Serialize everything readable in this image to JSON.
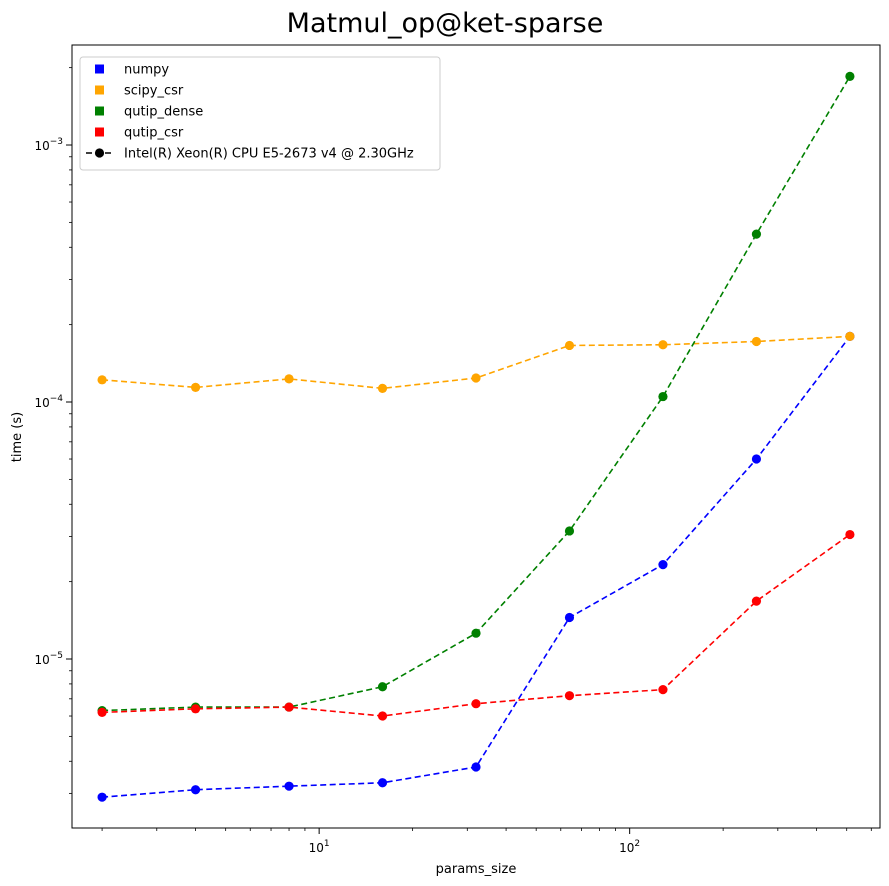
{
  "chart_data": {
    "type": "line",
    "title": "Matmul_op@ket-sparse",
    "xlabel": "params_size",
    "ylabel": "time (s)",
    "xscale": "log",
    "yscale": "log",
    "xlim": [
      1.6,
      640
    ],
    "ylim": [
      2.2e-06,
      0.00245
    ],
    "grid": false,
    "legend_position": "top-left",
    "x": [
      2,
      4,
      8,
      16,
      32,
      64,
      128,
      256,
      512
    ],
    "x_major_ticks": [
      {
        "value": 10,
        "base": "10",
        "exp": "1"
      },
      {
        "value": 100,
        "base": "10",
        "exp": "2"
      }
    ],
    "y_major_ticks": [
      {
        "value": 1e-05,
        "base": "10",
        "exp": "−5"
      },
      {
        "value": 0.0001,
        "base": "10",
        "exp": "−4"
      },
      {
        "value": 0.001,
        "base": "10",
        "exp": "−3"
      }
    ],
    "series": [
      {
        "name": "numpy",
        "color": "#0000ff",
        "values": [
          2.9e-06,
          3.1e-06,
          3.2e-06,
          3.3e-06,
          3.8e-06,
          1.45e-05,
          2.33e-05,
          6e-05,
          0.00018
        ]
      },
      {
        "name": "scipy_csr",
        "color": "#ffa500",
        "values": [
          0.000122,
          0.000114,
          0.000123,
          0.000113,
          0.000124,
          0.000166,
          0.000167,
          0.000172,
          0.00018
        ]
      },
      {
        "name": "qutip_dense",
        "color": "#008000",
        "values": [
          6.3e-06,
          6.5e-06,
          6.5e-06,
          7.8e-06,
          1.26e-05,
          3.15e-05,
          0.000105,
          0.00045,
          0.00185
        ]
      },
      {
        "name": "qutip_csr",
        "color": "#ff0000",
        "values": [
          6.2e-06,
          6.4e-06,
          6.5e-06,
          6e-06,
          6.7e-06,
          7.2e-06,
          7.6e-06,
          1.68e-05,
          3.05e-05
        ]
      }
    ],
    "legend": {
      "items": [
        {
          "label": "numpy",
          "color": "#0000ff",
          "kind": "square"
        },
        {
          "label": "scipy_csr",
          "color": "#ffa500",
          "kind": "square"
        },
        {
          "label": "qutip_dense",
          "color": "#008000",
          "kind": "square"
        },
        {
          "label": "qutip_csr",
          "color": "#ff0000",
          "kind": "square"
        },
        {
          "label": "Intel(R) Xeon(R) CPU E5-2673 v4 @ 2.30GHz",
          "color": "#000000",
          "kind": "line-dot"
        }
      ]
    }
  }
}
